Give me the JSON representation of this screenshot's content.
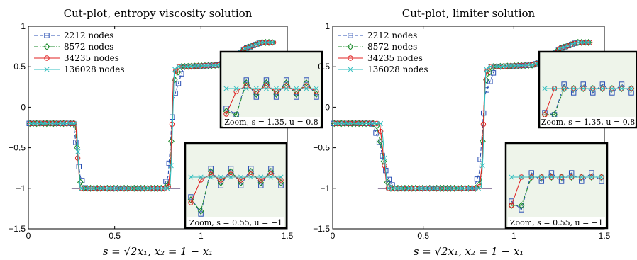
{
  "chart_data": [
    {
      "type": "line",
      "title": "Cut-plot, entropy viscosity solution",
      "xlabel": "s = √2x₁, x₂ = 1 − x₁",
      "ylabel": "",
      "xlim": [
        0,
        1.5
      ],
      "ylim": [
        -1.5,
        1
      ],
      "xticks": [
        "0",
        "0.5",
        "1",
        "1.5"
      ],
      "yticks": [
        "1",
        "0.5",
        "0",
        "−0.5",
        "−1",
        "−1.5"
      ],
      "legend_position": "top-left",
      "series": [
        {
          "name": "2212 nodes",
          "color": "#2a4fb4",
          "marker": "square",
          "dash": "dashed",
          "x": [
            0,
            0.26,
            0.27,
            0.3,
            0.33,
            0.5,
            0.78,
            0.81,
            0.84,
            0.9,
            1.1,
            1.2,
            1.25,
            1.35,
            1.42
          ],
          "y": [
            -0.2,
            -0.2,
            -0.35,
            -0.85,
            -1,
            -1,
            -1,
            -0.85,
            0.1,
            0.5,
            0.52,
            0.6,
            0.72,
            0.8,
            0.8
          ]
        },
        {
          "name": "8572 nodes",
          "color": "#1a8a2a",
          "marker": "diamond",
          "dash": "dashdot",
          "x": [
            0,
            0.27,
            0.28,
            0.3,
            0.32,
            0.5,
            0.8,
            0.82,
            0.84,
            0.88,
            1.1,
            1.2,
            1.25,
            1.35,
            1.42
          ],
          "y": [
            -0.2,
            -0.2,
            -0.45,
            -0.92,
            -1,
            -1,
            -1,
            -0.9,
            0.3,
            0.5,
            0.52,
            0.6,
            0.72,
            0.8,
            0.8
          ]
        },
        {
          "name": "34235 nodes",
          "color": "#e02020",
          "marker": "circle",
          "dash": "solid",
          "x": [
            0,
            0.275,
            0.285,
            0.3,
            0.5,
            0.81,
            0.825,
            0.84,
            0.86,
            1.1,
            1.2,
            1.25,
            1.35,
            1.42
          ],
          "y": [
            -0.2,
            -0.2,
            -0.6,
            -1,
            -1,
            -1,
            -0.7,
            0.35,
            0.5,
            0.52,
            0.6,
            0.72,
            0.8,
            0.8
          ]
        },
        {
          "name": "136028 nodes",
          "color": "#33bfc0",
          "marker": "x",
          "dash": "solid",
          "x": [
            0,
            0.28,
            0.29,
            0.3,
            0.5,
            0.82,
            0.83,
            0.845,
            0.86,
            1.1,
            1.2,
            1.25,
            1.35,
            1.42
          ],
          "y": [
            -0.2,
            -0.2,
            -0.7,
            -1,
            -1,
            -1,
            -0.6,
            0.45,
            0.5,
            0.52,
            0.6,
            0.72,
            0.8,
            0.8
          ]
        }
      ],
      "insets": [
        {
          "label": "Zoom, s = 1.35, u = 0.8"
        },
        {
          "label": "Zoom, s = 0.55, u = −1"
        }
      ]
    },
    {
      "type": "line",
      "title": "Cut-plot, limiter solution",
      "xlabel": "s = √2x₁, x₂ = 1 − x₁",
      "ylabel": "",
      "xlim": [
        0,
        1.5
      ],
      "ylim": [
        -1.5,
        1
      ],
      "xticks": [
        "0",
        "0.5",
        "1",
        "1.5"
      ],
      "yticks": [
        "1",
        "0.5",
        "0",
        "−0.5",
        "−1",
        "−1.5"
      ],
      "legend_position": "top-left",
      "series": [
        {
          "name": "2212 nodes",
          "color": "#2a4fb4",
          "marker": "square",
          "dash": "dashed",
          "x": [
            0,
            0.22,
            0.26,
            0.3,
            0.34,
            0.5,
            0.78,
            0.81,
            0.84,
            0.9,
            1.1,
            1.2,
            1.25,
            1.35,
            1.42
          ],
          "y": [
            -0.2,
            -0.2,
            -0.45,
            -0.85,
            -1,
            -1,
            -1,
            -0.8,
            0.15,
            0.5,
            0.52,
            0.6,
            0.72,
            0.8,
            0.8
          ]
        },
        {
          "name": "8572 nodes",
          "color": "#1a8a2a",
          "marker": "diamond",
          "dash": "dashdot",
          "x": [
            0,
            0.24,
            0.27,
            0.3,
            0.32,
            0.5,
            0.8,
            0.82,
            0.84,
            0.88,
            1.1,
            1.2,
            1.25,
            1.35,
            1.42
          ],
          "y": [
            -0.2,
            -0.2,
            -0.5,
            -0.92,
            -1,
            -1,
            -1,
            -0.9,
            0.3,
            0.5,
            0.52,
            0.6,
            0.72,
            0.8,
            0.8
          ]
        },
        {
          "name": "34235 nodes",
          "color": "#e02020",
          "marker": "circle",
          "dash": "solid",
          "x": [
            0,
            0.26,
            0.28,
            0.3,
            0.5,
            0.81,
            0.825,
            0.84,
            0.86,
            1.1,
            1.2,
            1.25,
            1.35,
            1.42
          ],
          "y": [
            -0.2,
            -0.2,
            -0.6,
            -1,
            -1,
            -1,
            -0.7,
            0.35,
            0.5,
            0.52,
            0.6,
            0.72,
            0.8,
            0.8
          ]
        },
        {
          "name": "136028 nodes",
          "color": "#33bfc0",
          "marker": "x",
          "dash": "solid",
          "x": [
            0,
            0.27,
            0.29,
            0.3,
            0.5,
            0.82,
            0.83,
            0.845,
            0.86,
            1.1,
            1.2,
            1.25,
            1.35,
            1.42
          ],
          "y": [
            -0.2,
            -0.2,
            -0.7,
            -1,
            -1,
            -1,
            -0.6,
            0.45,
            0.5,
            0.52,
            0.6,
            0.72,
            0.8,
            0.8
          ]
        }
      ],
      "insets": [
        {
          "label": "Zoom, s = 1.35, u = 0.8"
        },
        {
          "label": "Zoom, s = 0.55, u = −1"
        }
      ]
    }
  ]
}
